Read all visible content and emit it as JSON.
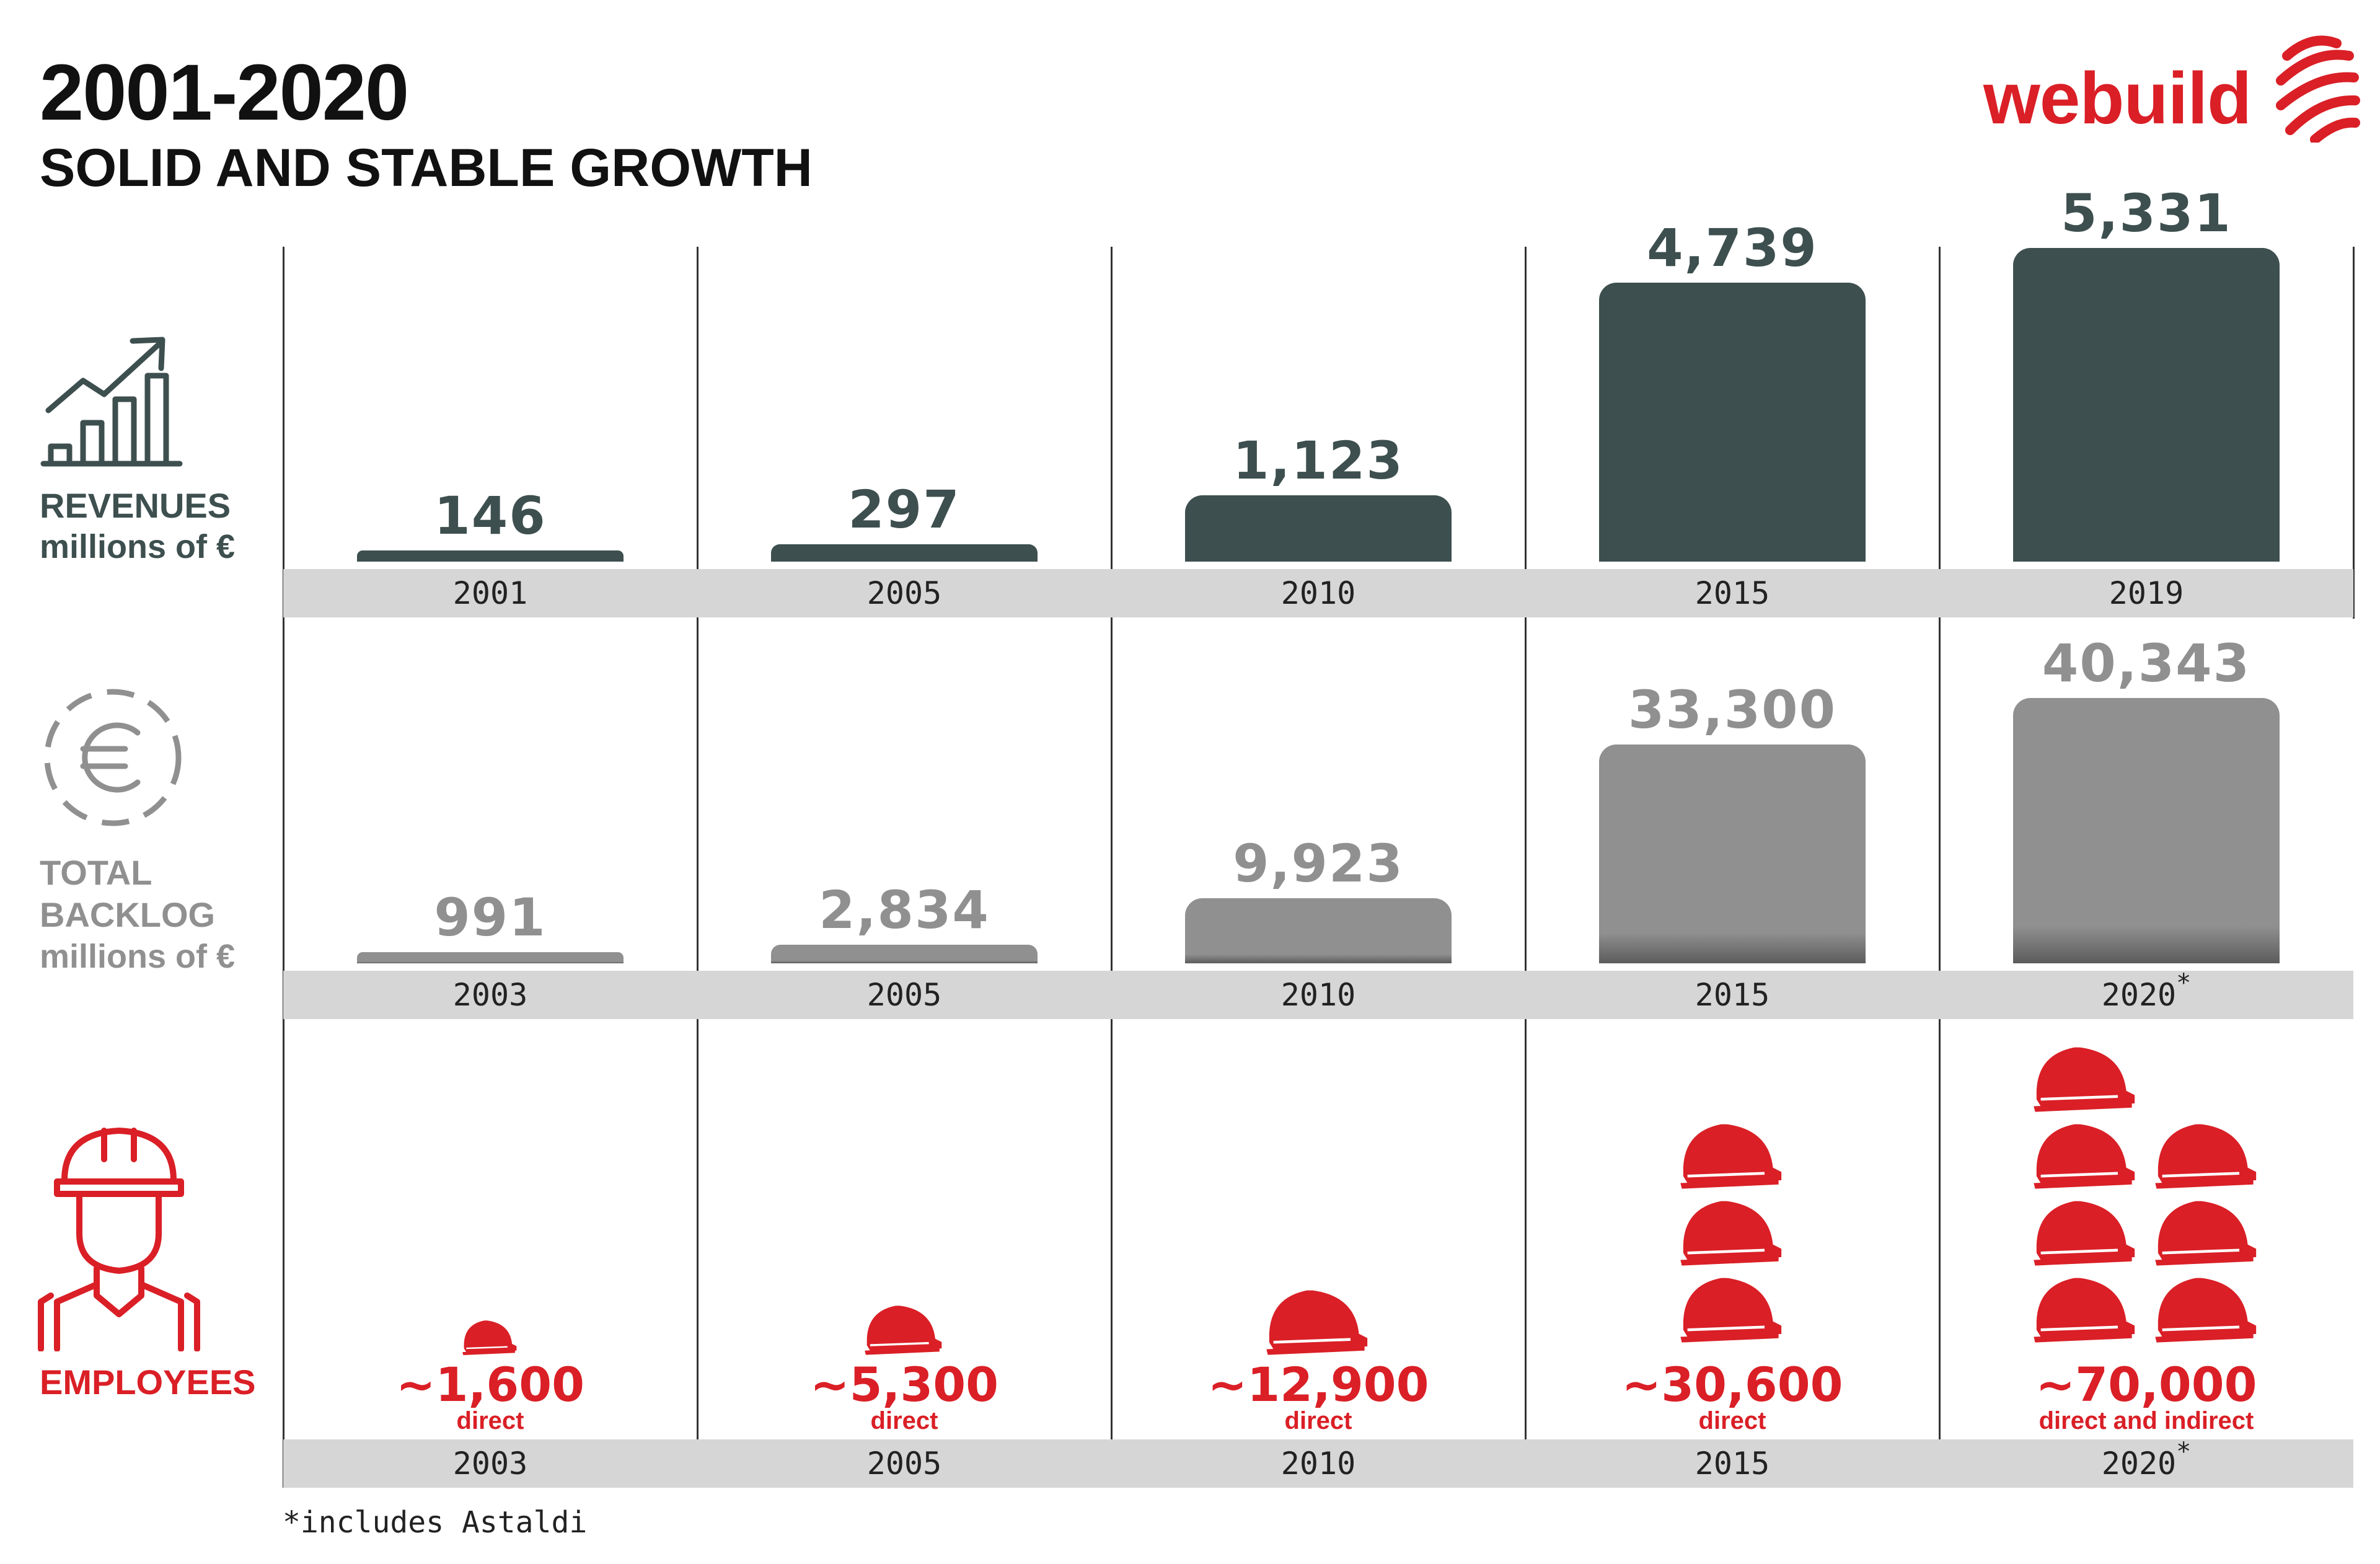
{
  "header": {
    "title": "2001-2020",
    "subtitle": "SOLID AND STABLE GROWTH"
  },
  "logo": {
    "text": "webuild",
    "color": "#da1f26"
  },
  "colors": {
    "revenues": "#3d4f4e",
    "backlog": "#8f908f",
    "employees": "#da1f26",
    "band": "#d7d6d6"
  },
  "sections": {
    "revenues": {
      "label": "REVENUES",
      "unit": "millions of €",
      "icon": "growth-chart-icon"
    },
    "backlog": {
      "label_line1": "TOTAL",
      "label_line2": "BACKLOG",
      "unit": "millions of €",
      "icon": "euro-coin-icon"
    },
    "employees": {
      "label": "EMPLOYEES",
      "icon": "construction-worker-icon"
    }
  },
  "chart_data": [
    {
      "type": "bar",
      "title": "REVENUES",
      "ylabel": "millions of €",
      "categories": [
        "2001",
        "2005",
        "2010",
        "2015",
        "2019"
      ],
      "values": [
        146,
        297,
        1123,
        4739,
        5331
      ],
      "value_labels": [
        "146",
        "297",
        "1,123",
        "4,739",
        "5,331"
      ],
      "color": "#3d4f4e"
    },
    {
      "type": "bar",
      "title": "TOTAL BACKLOG",
      "ylabel": "millions of €",
      "categories": [
        "2003",
        "2005",
        "2010",
        "2015",
        "2020"
      ],
      "category_marks": [
        "",
        "",
        "",
        "",
        "*"
      ],
      "values": [
        991,
        2834,
        9923,
        33300,
        40343
      ],
      "value_labels": [
        "991",
        "2,834",
        "9,923",
        "33,300",
        "40,343"
      ],
      "color": "#8f908f"
    },
    {
      "type": "table",
      "title": "EMPLOYEES",
      "categories": [
        "2003",
        "2005",
        "2010",
        "2015",
        "2020"
      ],
      "category_marks": [
        "",
        "",
        "",
        "",
        "*"
      ],
      "values": [
        1600,
        5300,
        12900,
        30600,
        70000
      ],
      "value_labels": [
        "~1,600",
        "~5,300",
        "~12,900",
        "~30,600",
        "~70,000"
      ],
      "notes": [
        "direct",
        "direct",
        "direct",
        "direct",
        "direct and indirect"
      ],
      "icon": "hard-hat-icon",
      "hat_counts": [
        1,
        1,
        1,
        3,
        7
      ],
      "color": "#da1f26"
    }
  ],
  "footnote": "*includes Astaldi"
}
